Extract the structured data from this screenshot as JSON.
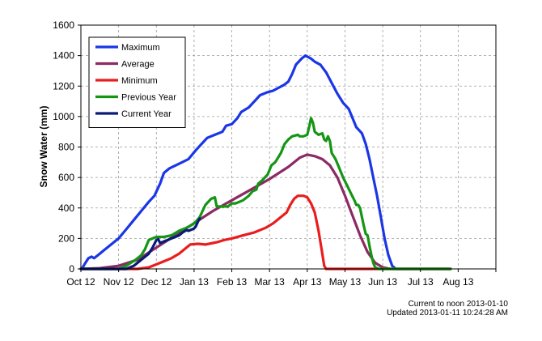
{
  "chart_data": {
    "type": "line",
    "ylabel": "Snow Water (mm)",
    "xlabel": "",
    "ylim": [
      0,
      1600
    ],
    "yticks": [
      0,
      200,
      400,
      600,
      800,
      1000,
      1200,
      1400,
      1600
    ],
    "xlim": [
      "Oct 12",
      "Sep 13"
    ],
    "x_tick_labels": [
      "Oct 12",
      "Nov 12",
      "Dec 12",
      "Jan 13",
      "Feb 13",
      "Mar 13",
      "Apr 13",
      "May 13",
      "Jun 13",
      "Jul 13",
      "Aug 13"
    ],
    "grid": true,
    "legend_position": "top-left",
    "series": [
      {
        "name": "Maximum",
        "color": "#1a36e6",
        "points": [
          [
            0,
            0
          ],
          [
            0.05,
            10
          ],
          [
            0.12,
            40
          ],
          [
            0.2,
            70
          ],
          [
            0.28,
            80
          ],
          [
            0.35,
            70
          ],
          [
            0.45,
            90
          ],
          [
            0.6,
            120
          ],
          [
            0.8,
            160
          ],
          [
            1.0,
            200
          ],
          [
            1.2,
            260
          ],
          [
            1.4,
            320
          ],
          [
            1.6,
            380
          ],
          [
            1.8,
            440
          ],
          [
            1.95,
            480
          ],
          [
            2.1,
            560
          ],
          [
            2.2,
            630
          ],
          [
            2.35,
            660
          ],
          [
            2.6,
            690
          ],
          [
            2.85,
            720
          ],
          [
            3.05,
            780
          ],
          [
            3.2,
            820
          ],
          [
            3.35,
            860
          ],
          [
            3.55,
            880
          ],
          [
            3.75,
            900
          ],
          [
            3.85,
            940
          ],
          [
            4.0,
            950
          ],
          [
            4.15,
            990
          ],
          [
            4.25,
            1030
          ],
          [
            4.45,
            1060
          ],
          [
            4.6,
            1100
          ],
          [
            4.75,
            1140
          ],
          [
            4.95,
            1160
          ],
          [
            5.1,
            1170
          ],
          [
            5.25,
            1190
          ],
          [
            5.4,
            1210
          ],
          [
            5.5,
            1230
          ],
          [
            5.6,
            1280
          ],
          [
            5.7,
            1340
          ],
          [
            5.85,
            1380
          ],
          [
            5.95,
            1400
          ],
          [
            6.1,
            1380
          ],
          [
            6.2,
            1360
          ],
          [
            6.35,
            1340
          ],
          [
            6.5,
            1290
          ],
          [
            6.65,
            1220
          ],
          [
            6.8,
            1150
          ],
          [
            6.95,
            1090
          ],
          [
            7.1,
            1050
          ],
          [
            7.2,
            990
          ],
          [
            7.3,
            930
          ],
          [
            7.45,
            890
          ],
          [
            7.55,
            820
          ],
          [
            7.65,
            720
          ],
          [
            7.75,
            600
          ],
          [
            7.85,
            480
          ],
          [
            7.95,
            340
          ],
          [
            8.05,
            200
          ],
          [
            8.15,
            90
          ],
          [
            8.25,
            20
          ],
          [
            8.35,
            0
          ],
          [
            9.8,
            0
          ]
        ]
      },
      {
        "name": "Average",
        "color": "#8b2a64",
        "points": [
          [
            0,
            0
          ],
          [
            0.5,
            5
          ],
          [
            1.0,
            20
          ],
          [
            1.5,
            60
          ],
          [
            2.0,
            140
          ],
          [
            2.5,
            220
          ],
          [
            3.0,
            300
          ],
          [
            3.5,
            380
          ],
          [
            4.0,
            450
          ],
          [
            4.5,
            520
          ],
          [
            5.0,
            590
          ],
          [
            5.5,
            670
          ],
          [
            5.8,
            730
          ],
          [
            6.0,
            750
          ],
          [
            6.2,
            740
          ],
          [
            6.4,
            720
          ],
          [
            6.6,
            680
          ],
          [
            6.8,
            600
          ],
          [
            7.0,
            480
          ],
          [
            7.2,
            350
          ],
          [
            7.4,
            220
          ],
          [
            7.6,
            110
          ],
          [
            7.8,
            40
          ],
          [
            8.0,
            10
          ],
          [
            8.2,
            0
          ],
          [
            9.8,
            0
          ]
        ]
      },
      {
        "name": "Minimum",
        "color": "#e81e1e",
        "points": [
          [
            0,
            0
          ],
          [
            1.5,
            0
          ],
          [
            1.8,
            10
          ],
          [
            2.0,
            30
          ],
          [
            2.2,
            50
          ],
          [
            2.4,
            70
          ],
          [
            2.6,
            100
          ],
          [
            2.75,
            130
          ],
          [
            2.9,
            160
          ],
          [
            3.1,
            165
          ],
          [
            3.3,
            160
          ],
          [
            3.5,
            170
          ],
          [
            3.6,
            175
          ],
          [
            3.8,
            190
          ],
          [
            4.0,
            200
          ],
          [
            4.3,
            220
          ],
          [
            4.6,
            240
          ],
          [
            4.9,
            270
          ],
          [
            5.1,
            300
          ],
          [
            5.3,
            340
          ],
          [
            5.45,
            370
          ],
          [
            5.55,
            420
          ],
          [
            5.65,
            460
          ],
          [
            5.75,
            480
          ],
          [
            5.9,
            480
          ],
          [
            6.0,
            470
          ],
          [
            6.1,
            430
          ],
          [
            6.2,
            370
          ],
          [
            6.3,
            250
          ],
          [
            6.38,
            130
          ],
          [
            6.45,
            20
          ],
          [
            6.5,
            0
          ],
          [
            9.8,
            0
          ]
        ]
      },
      {
        "name": "Previous Year",
        "color": "#149614",
        "points": [
          [
            0,
            0
          ],
          [
            1.0,
            0
          ],
          [
            1.2,
            20
          ],
          [
            1.45,
            60
          ],
          [
            1.6,
            90
          ],
          [
            1.7,
            130
          ],
          [
            1.8,
            190
          ],
          [
            1.9,
            200
          ],
          [
            2.0,
            210
          ],
          [
            2.2,
            210
          ],
          [
            2.4,
            220
          ],
          [
            2.6,
            250
          ],
          [
            2.8,
            270
          ],
          [
            2.95,
            290
          ],
          [
            3.05,
            310
          ],
          [
            3.15,
            340
          ],
          [
            3.3,
            420
          ],
          [
            3.45,
            460
          ],
          [
            3.55,
            470
          ],
          [
            3.6,
            410
          ],
          [
            3.7,
            410
          ],
          [
            3.9,
            410
          ],
          [
            4.0,
            430
          ],
          [
            4.1,
            430
          ],
          [
            4.3,
            450
          ],
          [
            4.45,
            480
          ],
          [
            4.55,
            510
          ],
          [
            4.65,
            520
          ],
          [
            4.7,
            560
          ],
          [
            4.8,
            580
          ],
          [
            4.95,
            620
          ],
          [
            5.05,
            680
          ],
          [
            5.15,
            700
          ],
          [
            5.3,
            760
          ],
          [
            5.4,
            820
          ],
          [
            5.5,
            850
          ],
          [
            5.6,
            870
          ],
          [
            5.75,
            880
          ],
          [
            5.8,
            870
          ],
          [
            5.9,
            870
          ],
          [
            6.0,
            880
          ],
          [
            6.05,
            930
          ],
          [
            6.1,
            990
          ],
          [
            6.15,
            960
          ],
          [
            6.2,
            900
          ],
          [
            6.25,
            890
          ],
          [
            6.3,
            880
          ],
          [
            6.4,
            890
          ],
          [
            6.45,
            850
          ],
          [
            6.5,
            840
          ],
          [
            6.55,
            870
          ],
          [
            6.6,
            840
          ],
          [
            6.65,
            760
          ],
          [
            6.7,
            740
          ],
          [
            6.75,
            720
          ],
          [
            6.85,
            660
          ],
          [
            6.95,
            600
          ],
          [
            7.05,
            550
          ],
          [
            7.15,
            500
          ],
          [
            7.25,
            450
          ],
          [
            7.3,
            420
          ],
          [
            7.35,
            420
          ],
          [
            7.4,
            400
          ],
          [
            7.45,
            340
          ],
          [
            7.5,
            280
          ],
          [
            7.55,
            230
          ],
          [
            7.6,
            220
          ],
          [
            7.65,
            150
          ],
          [
            7.7,
            90
          ],
          [
            7.75,
            40
          ],
          [
            7.8,
            10
          ],
          [
            7.9,
            0
          ],
          [
            9.8,
            0
          ]
        ]
      },
      {
        "name": "Current Year",
        "color": "#0a1a78",
        "points": [
          [
            0,
            0
          ],
          [
            1.2,
            0
          ],
          [
            1.4,
            20
          ],
          [
            1.6,
            60
          ],
          [
            1.8,
            100
          ],
          [
            1.9,
            140
          ],
          [
            2.0,
            190
          ],
          [
            2.05,
            195
          ],
          [
            2.1,
            170
          ],
          [
            2.2,
            180
          ],
          [
            2.3,
            190
          ],
          [
            2.4,
            200
          ],
          [
            2.5,
            210
          ],
          [
            2.6,
            220
          ],
          [
            2.7,
            240
          ],
          [
            2.8,
            255
          ],
          [
            2.85,
            250
          ],
          [
            2.95,
            260
          ],
          [
            3.0,
            265
          ],
          [
            3.05,
            280
          ],
          [
            3.1,
            310
          ],
          [
            3.15,
            330
          ]
        ]
      }
    ]
  },
  "footer": {
    "line1": "Current to noon 2013-01-10",
    "line2": "Updated 2013-01-11 10:24:28 AM"
  }
}
